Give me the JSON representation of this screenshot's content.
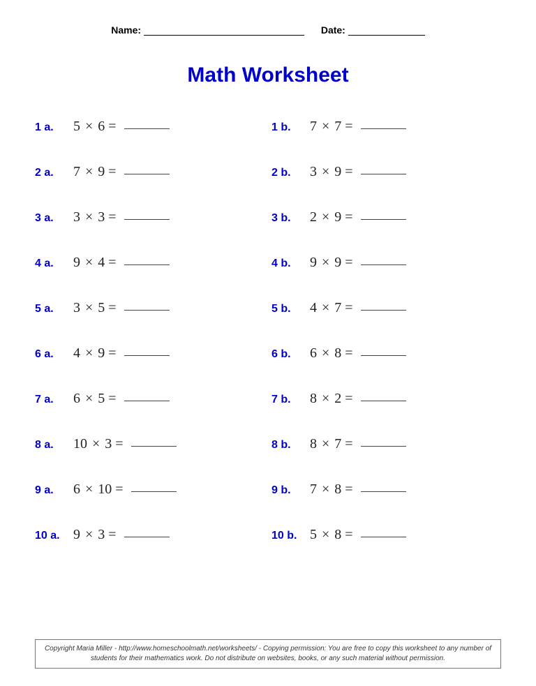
{
  "header": {
    "name_label": "Name:",
    "date_label": "Date:"
  },
  "title": "Math Worksheet",
  "colors": {
    "accent": "#0000cc",
    "text": "#222222",
    "background": "#ffffff"
  },
  "typography": {
    "title_fontsize": 30,
    "label_fontsize": 16,
    "expression_fontsize": 20,
    "expression_font": "Times New Roman"
  },
  "layout": {
    "columns": 2,
    "rows": 10,
    "row_gap": 42
  },
  "operator": "×",
  "equals": "=",
  "problems": [
    {
      "id": "1 a.",
      "a": 5,
      "b": 6
    },
    {
      "id": "1 b.",
      "a": 7,
      "b": 7
    },
    {
      "id": "2 a.",
      "a": 7,
      "b": 9
    },
    {
      "id": "2 b.",
      "a": 3,
      "b": 9
    },
    {
      "id": "3 a.",
      "a": 3,
      "b": 3
    },
    {
      "id": "3 b.",
      "a": 2,
      "b": 9
    },
    {
      "id": "4 a.",
      "a": 9,
      "b": 4
    },
    {
      "id": "4 b.",
      "a": 9,
      "b": 9
    },
    {
      "id": "5 a.",
      "a": 3,
      "b": 5
    },
    {
      "id": "5 b.",
      "a": 4,
      "b": 7
    },
    {
      "id": "6 a.",
      "a": 4,
      "b": 9
    },
    {
      "id": "6 b.",
      "a": 6,
      "b": 8
    },
    {
      "id": "7 a.",
      "a": 6,
      "b": 5
    },
    {
      "id": "7 b.",
      "a": 8,
      "b": 2
    },
    {
      "id": "8 a.",
      "a": 10,
      "b": 3
    },
    {
      "id": "8 b.",
      "a": 8,
      "b": 7
    },
    {
      "id": "9 a.",
      "a": 6,
      "b": 10
    },
    {
      "id": "9 b.",
      "a": 7,
      "b": 8
    },
    {
      "id": "10 a.",
      "a": 9,
      "b": 3
    },
    {
      "id": "10 b.",
      "a": 5,
      "b": 8
    }
  ],
  "footer": "Copyright Maria Miller - http://www.homeschoolmath.net/worksheets/ - Copying permission: You are free to copy this worksheet to any number of students for their mathematics work. Do not distribute on websites, books, or any such material without permission."
}
